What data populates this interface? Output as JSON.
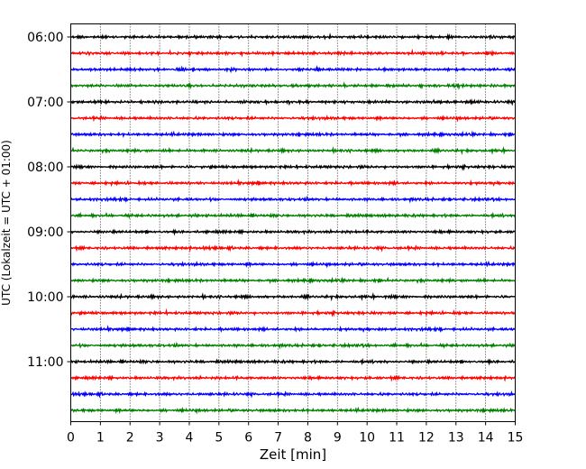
{
  "chart_data": {
    "type": "line",
    "title": "",
    "xlabel": "Zeit  [min]",
    "ylabel": "UTC (Lokalzeit = UTC + 01:00)",
    "xlim": [
      0,
      15
    ],
    "xticks": [
      "0",
      "1",
      "2",
      "3",
      "4",
      "5",
      "6",
      "7",
      "8",
      "9",
      "10",
      "11",
      "12",
      "13",
      "14",
      "15"
    ],
    "yticks": [
      {
        "label": "06:00",
        "row": 0
      },
      {
        "label": "07:00",
        "row": 4
      },
      {
        "label": "08:00",
        "row": 8
      },
      {
        "label": "09:00",
        "row": 12
      },
      {
        "label": "10:00",
        "row": 16
      },
      {
        "label": "11:00",
        "row": 20
      }
    ],
    "rows": 24,
    "row_interval_minutes": 15,
    "grid": "vertical dotted at each minute",
    "trace_colors": [
      "#000000",
      "#ff0000",
      "#0000ff",
      "#008000"
    ],
    "series_note_values": "each row is a seismogram-like noise trace; amplitude not labeled"
  }
}
